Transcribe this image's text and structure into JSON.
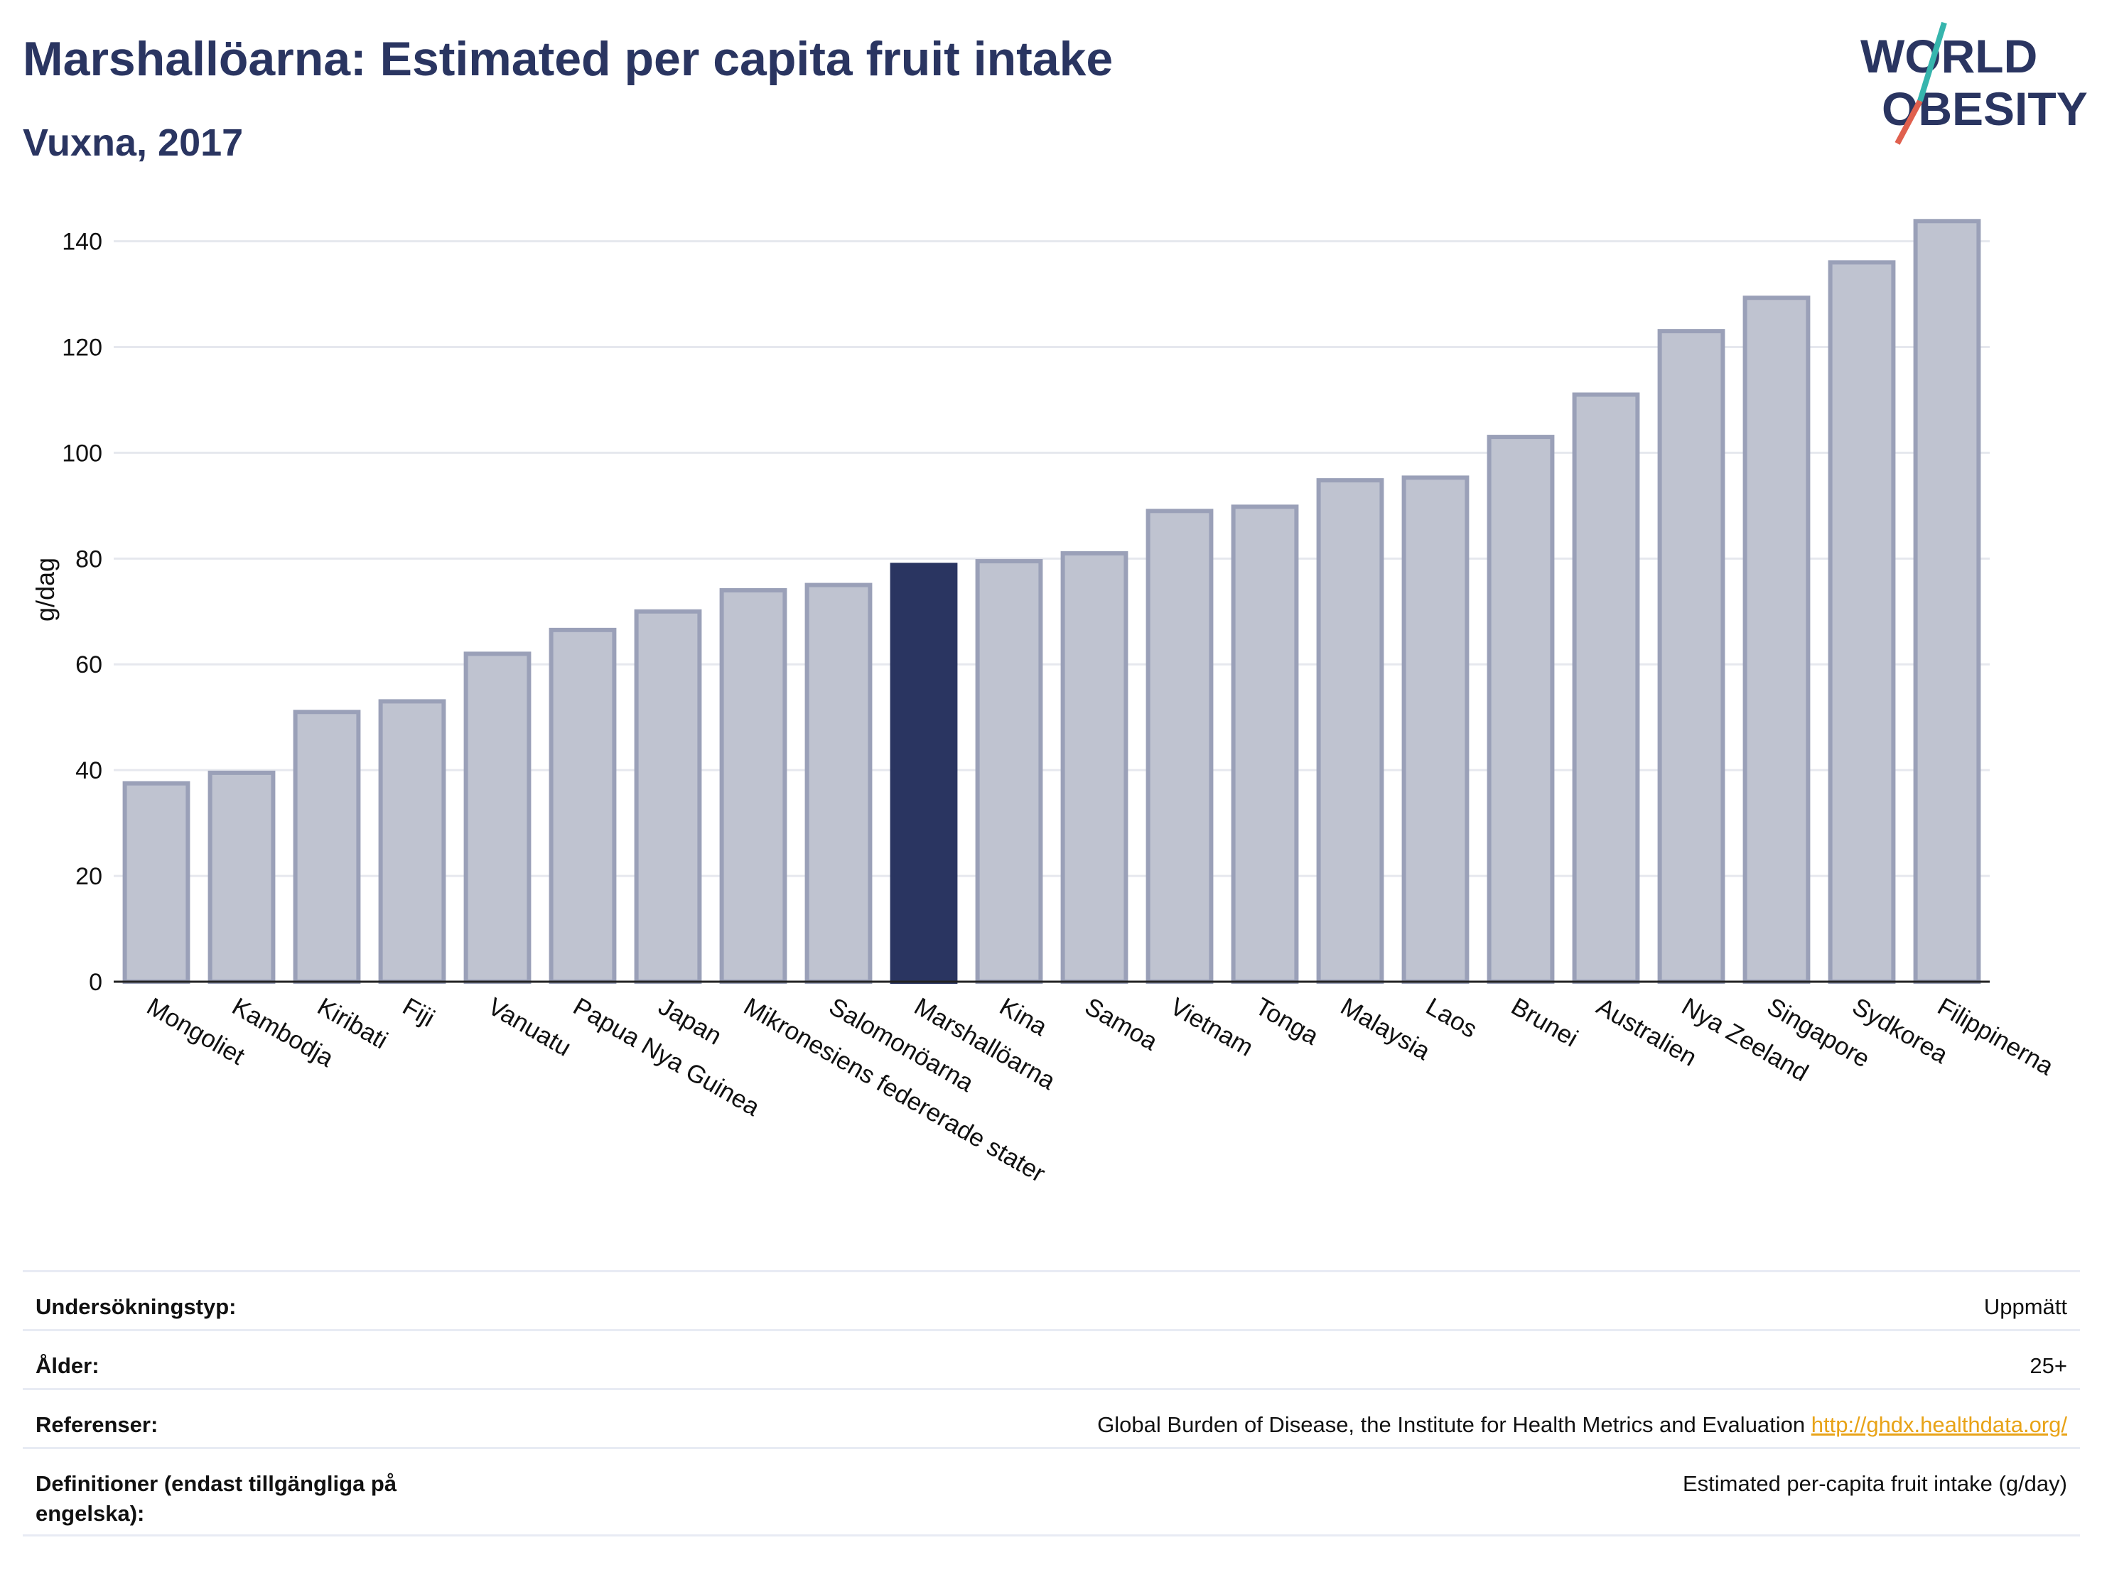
{
  "title": "Marshallöarna: Estimated per capita fruit intake",
  "subtitle": "Vuxna, 2017",
  "logo": {
    "line1": "WORLD",
    "line2": "OBESITY",
    "accent_teal": "#36b5ad",
    "accent_red": "#e0604e"
  },
  "colors": {
    "bar": "#bfc3d0",
    "bar_border": "#9aa0b8",
    "highlight": "#2a3561",
    "grid": "#e6e8ee",
    "axis": "#222222"
  },
  "chart_data": {
    "type": "bar",
    "ylabel": "g/dag",
    "ylim": [
      0,
      148
    ],
    "yticks": [
      0,
      20,
      40,
      60,
      80,
      100,
      120,
      140
    ],
    "grid": true,
    "highlight": "Marshallöarna",
    "categories": [
      "Mongoliet",
      "Kambodja",
      "Kiribati",
      "Fiji",
      "Vanuatu",
      "Papua Nya Guinea",
      "Japan",
      "Mikronesiens federerade stater",
      "Salomonöarna",
      "Marshallöarna",
      "Kina",
      "Samoa",
      "Vietnam",
      "Tonga",
      "Malaysia",
      "Laos",
      "Brunei",
      "Australien",
      "Nya Zeeland",
      "Singapore",
      "Sydkorea",
      "Filippinerna"
    ],
    "values": [
      37.5,
      39.5,
      51,
      53,
      62,
      66.5,
      70,
      74,
      75,
      78.8,
      79.5,
      81,
      89,
      89.8,
      94.8,
      95.3,
      103,
      111,
      123,
      129.3,
      136,
      143.8
    ]
  },
  "meta": {
    "rows": [
      {
        "label": "Undersökningstyp:",
        "value": "Uppmätt"
      },
      {
        "label": "Ålder:",
        "value": "25+"
      },
      {
        "label": "Referenser:",
        "value": "Global Burden of Disease, the Institute for Health Metrics and Evaluation",
        "link": "http://ghdx.healthdata.org/"
      },
      {
        "label": "Definitioner (endast tillgängliga på engelska):",
        "value": "Estimated per-capita fruit intake (g/day)"
      }
    ]
  }
}
